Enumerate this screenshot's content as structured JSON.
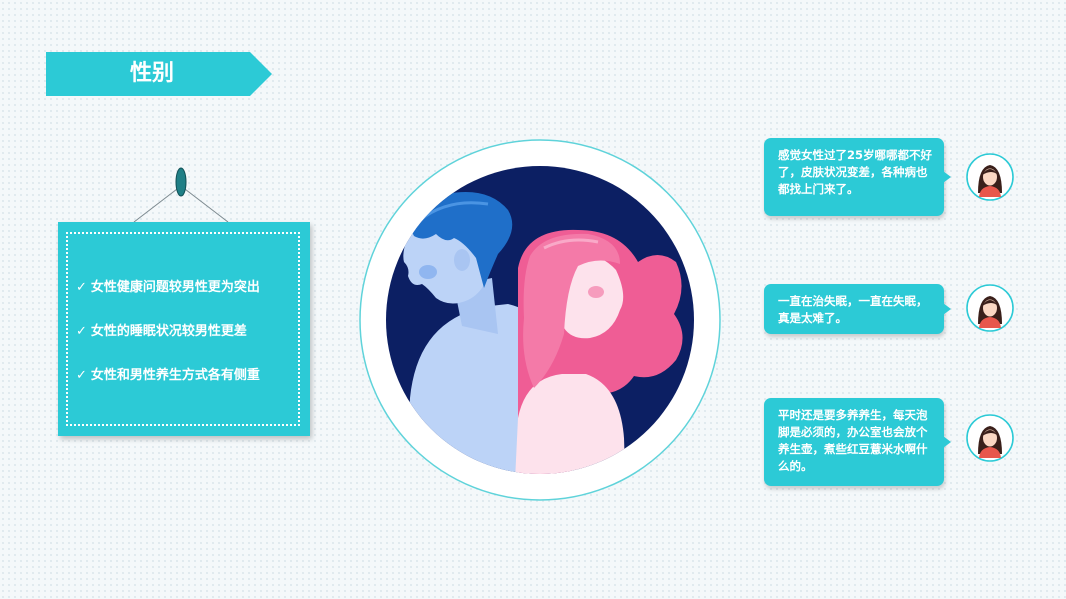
{
  "header": {
    "title": "性别"
  },
  "board": {
    "items": [
      {
        "check": "✓",
        "text": "女性健康问题较男性更为突出"
      },
      {
        "check": "✓",
        "text": "女性的睡眠状况较男性更差"
      },
      {
        "check": "✓",
        "text": "女性和男性养生方式各有侧重"
      }
    ]
  },
  "comments": [
    {
      "text": "感觉女性过了25岁哪哪都不好了，皮肤状况变差，各种病也都找上门来了。"
    },
    {
      "text": "一直在治失眠，一直在失眠，真是太难了。"
    },
    {
      "text": "平时还是要多养养生，每天泡脚是必须的，办公室也会放个养生壶，煮些红豆薏米水啊什么的。"
    }
  ],
  "colors": {
    "accent": "#2ccad6",
    "navy": "#0c1f63",
    "pink": "#ef5d95",
    "blue": "#1f6fc9"
  }
}
